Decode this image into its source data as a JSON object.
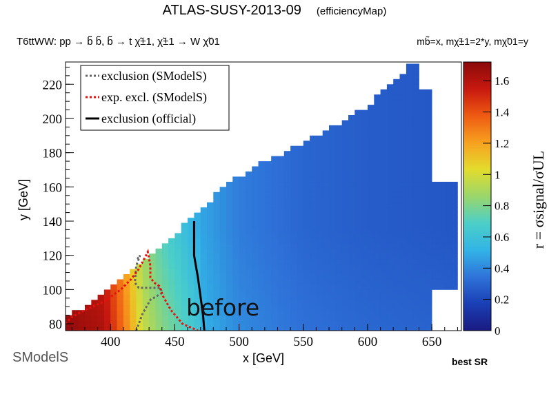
{
  "header": {
    "title": "ATLAS-SUSY-2013-09",
    "subtitle": "(efficiencyMap)",
    "process": "T6ttWW: pp → b̃ b̃, b̃ → t χ̃±1, χ̃±1 → W χ̃01",
    "masses": "mb̃=x, mχ̃±1=2*y, mχ̃01=y"
  },
  "footer": {
    "best_sr": "best SR",
    "logo": "SModelS"
  },
  "overlay_text": "before",
  "colors": {
    "exclusion_smodels": "#666666",
    "exp_excl_smodels": "#e8100a",
    "exclusion_official": "#000000"
  },
  "chart_data": {
    "type": "heatmap",
    "xlabel": "x [GeV]",
    "ylabel": "y [GeV]",
    "zlabel": "r = σsignal/σUL",
    "xlim": [
      365,
      673
    ],
    "ylim": [
      76,
      233
    ],
    "zlim": [
      0,
      1.72
    ],
    "x_ticks": [
      400,
      450,
      500,
      550,
      600,
      650
    ],
    "y_ticks": [
      80,
      100,
      120,
      140,
      160,
      180,
      200,
      220
    ],
    "z_ticks": [
      0,
      0.2,
      0.4,
      0.6,
      0.8,
      1,
      1.2,
      1.4,
      1.6
    ],
    "colorscale": [
      "#1a1a80",
      "#1a3fb5",
      "#2f73d9",
      "#32b4e6",
      "#4ccfc8",
      "#9ad66b",
      "#e3dc2d",
      "#f7a11f",
      "#ee5a12",
      "#c7180f",
      "#8a0a0a"
    ],
    "region": {
      "upper_edge": [
        [
          365,
          84
        ],
        [
          380,
          90
        ],
        [
          400,
          100
        ],
        [
          420,
          112
        ],
        [
          440,
          125
        ],
        [
          460,
          140
        ],
        [
          480,
          154
        ],
        [
          500,
          166
        ],
        [
          520,
          175
        ],
        [
          540,
          182
        ],
        [
          560,
          190
        ],
        [
          580,
          198
        ],
        [
          600,
          207
        ],
        [
          615,
          218
        ],
        [
          630,
          228
        ],
        [
          633,
          233
        ]
      ],
      "right_edge": [
        [
          642,
          233
        ],
        [
          642,
          217
        ],
        [
          652,
          217
        ],
        [
          652,
          163
        ],
        [
          668,
          163
        ],
        [
          668,
          100
        ],
        [
          652,
          100
        ],
        [
          652,
          80
        ],
        [
          648,
          80
        ]
      ]
    },
    "r_profile": [
      [
        365,
        1.58
      ],
      [
        395,
        1.5
      ],
      [
        410,
        1.2
      ],
      [
        425,
        0.85
      ],
      [
        440,
        0.7
      ],
      [
        455,
        0.6
      ],
      [
        470,
        0.48
      ],
      [
        500,
        0.37
      ],
      [
        550,
        0.3
      ],
      [
        600,
        0.27
      ],
      [
        668,
        0.25
      ]
    ],
    "legend": {
      "placement": "top-left",
      "entries": [
        "exclusion (SModelS)",
        "exp. excl. (SModelS)",
        "exclusion (official)"
      ]
    },
    "series": [
      {
        "name": "exclusion (SModelS)",
        "style": "dotted",
        "points": [
          [
            420,
            76
          ],
          [
            425,
            86
          ],
          [
            431,
            94
          ],
          [
            440,
            98
          ],
          [
            439,
            101
          ],
          [
            422,
            101
          ],
          [
            419,
            104
          ],
          [
            420,
            114
          ],
          [
            423,
            120
          ],
          [
            420,
            117
          ]
        ]
      },
      {
        "name": "exp. excl. (SModelS)",
        "style": "dotted",
        "points": [
          [
            365,
            80
          ],
          [
            370,
            84
          ],
          [
            380,
            88
          ],
          [
            395,
            93
          ],
          [
            408,
            100
          ],
          [
            416,
            106
          ],
          [
            422,
            112
          ],
          [
            427,
            119
          ],
          [
            429,
            122
          ],
          [
            431,
            114
          ],
          [
            431,
            107
          ],
          [
            434,
            104
          ],
          [
            438,
            102
          ],
          [
            441,
            96
          ],
          [
            447,
            88
          ],
          [
            456,
            80
          ],
          [
            468,
            76
          ]
        ]
      },
      {
        "name": "exclusion (official)",
        "style": "solid",
        "points": [
          [
            465,
            140
          ],
          [
            465,
            120
          ],
          [
            468,
            107
          ],
          [
            470,
            96
          ],
          [
            472,
            85
          ],
          [
            473,
            76
          ]
        ]
      }
    ]
  }
}
